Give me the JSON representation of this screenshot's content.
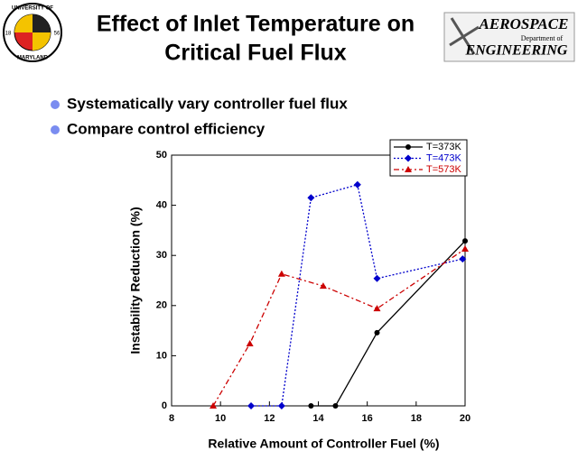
{
  "header": {
    "title_lines": [
      "Effect of Inlet Temperature on",
      "Critical Fuel Flux"
    ],
    "left_logo": {
      "top": "UNIVERSITY OF",
      "bottom": "MARYLAND",
      "year_left": "18",
      "year_right": "56"
    },
    "right_logo": {
      "top": "AEROSPACE",
      "middle": "Department of",
      "bottom": "ENGINEERING"
    }
  },
  "bullets": [
    "Systematically vary controller fuel flux",
    "Compare control efficiency"
  ],
  "chart_data": {
    "type": "line",
    "xlabel": "Relative Amount of Controller Fuel (%)",
    "ylabel": "Instability Reduction (%)",
    "xlim": [
      8,
      20
    ],
    "xticks": [
      8,
      10,
      12,
      14,
      16,
      18,
      20
    ],
    "ylim": [
      0,
      50
    ],
    "yticks": [
      0,
      10,
      20,
      30,
      40,
      50
    ],
    "legend": "upper right",
    "series": [
      {
        "name": "T=373K",
        "color": "#000000",
        "marker": "circle",
        "dash": "solid",
        "x": [
          13.7,
          14.7,
          16.4,
          20
        ],
        "values": [
          0,
          0,
          14.6,
          32.9
        ]
      },
      {
        "name": "T=473K",
        "color": "#0000cc",
        "marker": "diamond",
        "dash": "dotted",
        "x": [
          11.25,
          12.5,
          13.7,
          15.6,
          16.4,
          19.9
        ],
        "values": [
          0,
          0,
          41.5,
          44.1,
          25.4,
          29.3
        ]
      },
      {
        "name": "T=573K",
        "color": "#cc0000",
        "marker": "triangle",
        "dash": "dashdot",
        "x": [
          9.7,
          11.2,
          12.5,
          14.2,
          16.4,
          20
        ],
        "values": [
          0,
          12.4,
          26.3,
          23.9,
          19.4,
          31.3
        ]
      }
    ]
  }
}
